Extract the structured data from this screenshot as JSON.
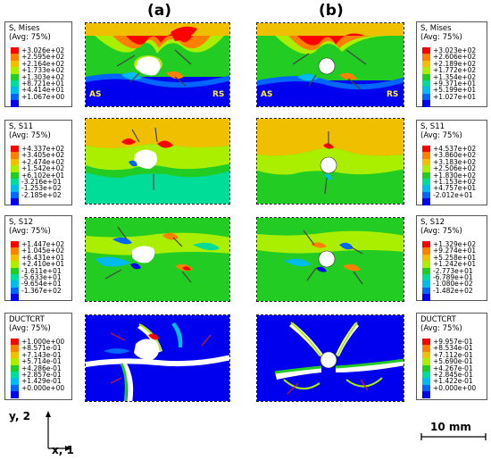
{
  "column_labels": [
    "(a)",
    "(b)"
  ],
  "side_labels": {
    "advancing": "AS",
    "retreating": "RS"
  },
  "legend_colors": [
    "#ff0000",
    "#ff7f00",
    "#f0c000",
    "#aaee00",
    "#22cc22",
    "#00dd99",
    "#00bbee",
    "#0066ff",
    "#0000ee"
  ],
  "legends": [
    {
      "id": "mises-a",
      "title": "S, Mises",
      "avg": "(Avg: 75%)",
      "values": [
        "+3.026e+02",
        "+2.595e+02",
        "+2.164e+02",
        "+1.733e+02",
        "+1.303e+02",
        "+8.721e+01",
        "+4.414e+01",
        "+1.067e+00"
      ]
    },
    {
      "id": "mises-b",
      "title": "S, Mises",
      "avg": "(Avg: 75%)",
      "values": [
        "+3.023e+02",
        "+2.606e+02",
        "+2.189e+02",
        "+1.772e+02",
        "+1.354e+02",
        "+9.371e+01",
        "+5.199e+01",
        "+1.027e+01"
      ]
    },
    {
      "id": "s11-a",
      "title": "S, S11",
      "avg": "(Avg: 75%)",
      "values": [
        "+4.337e+02",
        "+3.405e+02",
        "+2.474e+02",
        "+1.542e+02",
        "+6.102e+01",
        "-3.216e+01",
        "-1.253e+02",
        "-2.185e+02"
      ]
    },
    {
      "id": "s11-b",
      "title": "S, S11",
      "avg": "(Avg: 75%)",
      "values": [
        "+4.537e+02",
        "+3.860e+02",
        "+3.183e+02",
        "+2.506e+02",
        "+1.830e+02",
        "+1.153e+02",
        "+4.757e+01",
        "-2.012e+01"
      ]
    },
    {
      "id": "s12-a",
      "title": "S, S12",
      "avg": "(Avg: 75%)",
      "values": [
        "+1.447e+02",
        "+1.045e+02",
        "+6.431e+01",
        "+2.410e+01",
        "-1.611e+01",
        "-5.633e+01",
        "-9.654e+01",
        "-1.367e+02"
      ]
    },
    {
      "id": "s12-b",
      "title": "S, S12",
      "avg": "(Avg: 75%)",
      "values": [
        "+1.329e+02",
        "+9.274e+01",
        "+5.258e+01",
        "+1.242e+01",
        "-2.773e+01",
        "-6.789e+01",
        "-1.080e+02",
        "-1.482e+02"
      ]
    },
    {
      "id": "duct-a",
      "title": "DUCTCRT",
      "avg": "(Avg: 75%)",
      "values": [
        "+1.000e+00",
        "+8.571e-01",
        "+7.143e-01",
        "+5.714e-01",
        "+4.286e-01",
        "+2.857e-01",
        "+1.429e-01",
        "+0.000e+00"
      ]
    },
    {
      "id": "duct-b",
      "title": "DUCTCRT",
      "avg": "(Avg: 75%)",
      "values": [
        "+9.957e-01",
        "+8.534e-01",
        "+7.112e-01",
        "+5.690e-01",
        "+4.267e-01",
        "+2.845e-01",
        "+1.422e-01",
        "+0.000e+00"
      ]
    }
  ],
  "axes": {
    "y_label": "y, 2",
    "x_label": "x, 1"
  },
  "scale_bar": "10 mm"
}
